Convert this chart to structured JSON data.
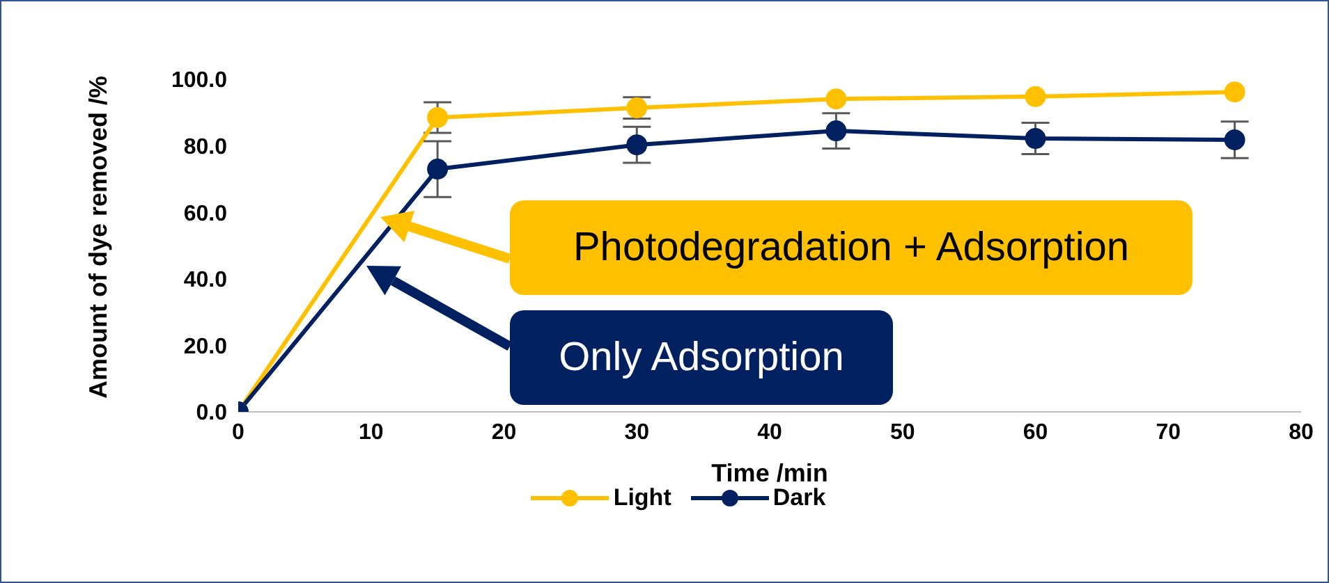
{
  "chart_data": {
    "type": "line",
    "xlabel": "Time /min",
    "ylabel": "Amount of dye removed /%",
    "x": [
      0,
      15,
      30,
      45,
      60,
      75
    ],
    "series": [
      {
        "name": "Light",
        "color": "#ffc000",
        "values": [
          0,
          88.5,
          91.4,
          94.1,
          94.8,
          96.2
        ],
        "errors": [
          null,
          4.6,
          3.2,
          null,
          null,
          null
        ]
      },
      {
        "name": "Dark",
        "color": "#002060",
        "values": [
          0,
          73.0,
          80.3,
          84.5,
          82.2,
          81.8
        ],
        "errors": [
          null,
          8.4,
          5.4,
          5.3,
          4.7,
          5.5
        ]
      }
    ],
    "xlim": [
      0,
      80
    ],
    "xticks": [
      0,
      10,
      20,
      30,
      40,
      50,
      60,
      70,
      80
    ],
    "ylim": [
      0,
      100
    ],
    "yticks": [
      {
        "value": 0,
        "label": "0.0"
      },
      {
        "value": 20,
        "label": "20.0"
      },
      {
        "value": 40,
        "label": "40.0"
      },
      {
        "value": 60,
        "label": "60.0"
      },
      {
        "value": 80,
        "label": "80.0"
      },
      {
        "value": 100,
        "label": "100.0"
      }
    ],
    "annotations": [
      "Photodegradation + Adsorption",
      "Only Adsorption"
    ],
    "grid": false,
    "legend": "bottom",
    "marker": "circle",
    "line_style": "solid"
  }
}
